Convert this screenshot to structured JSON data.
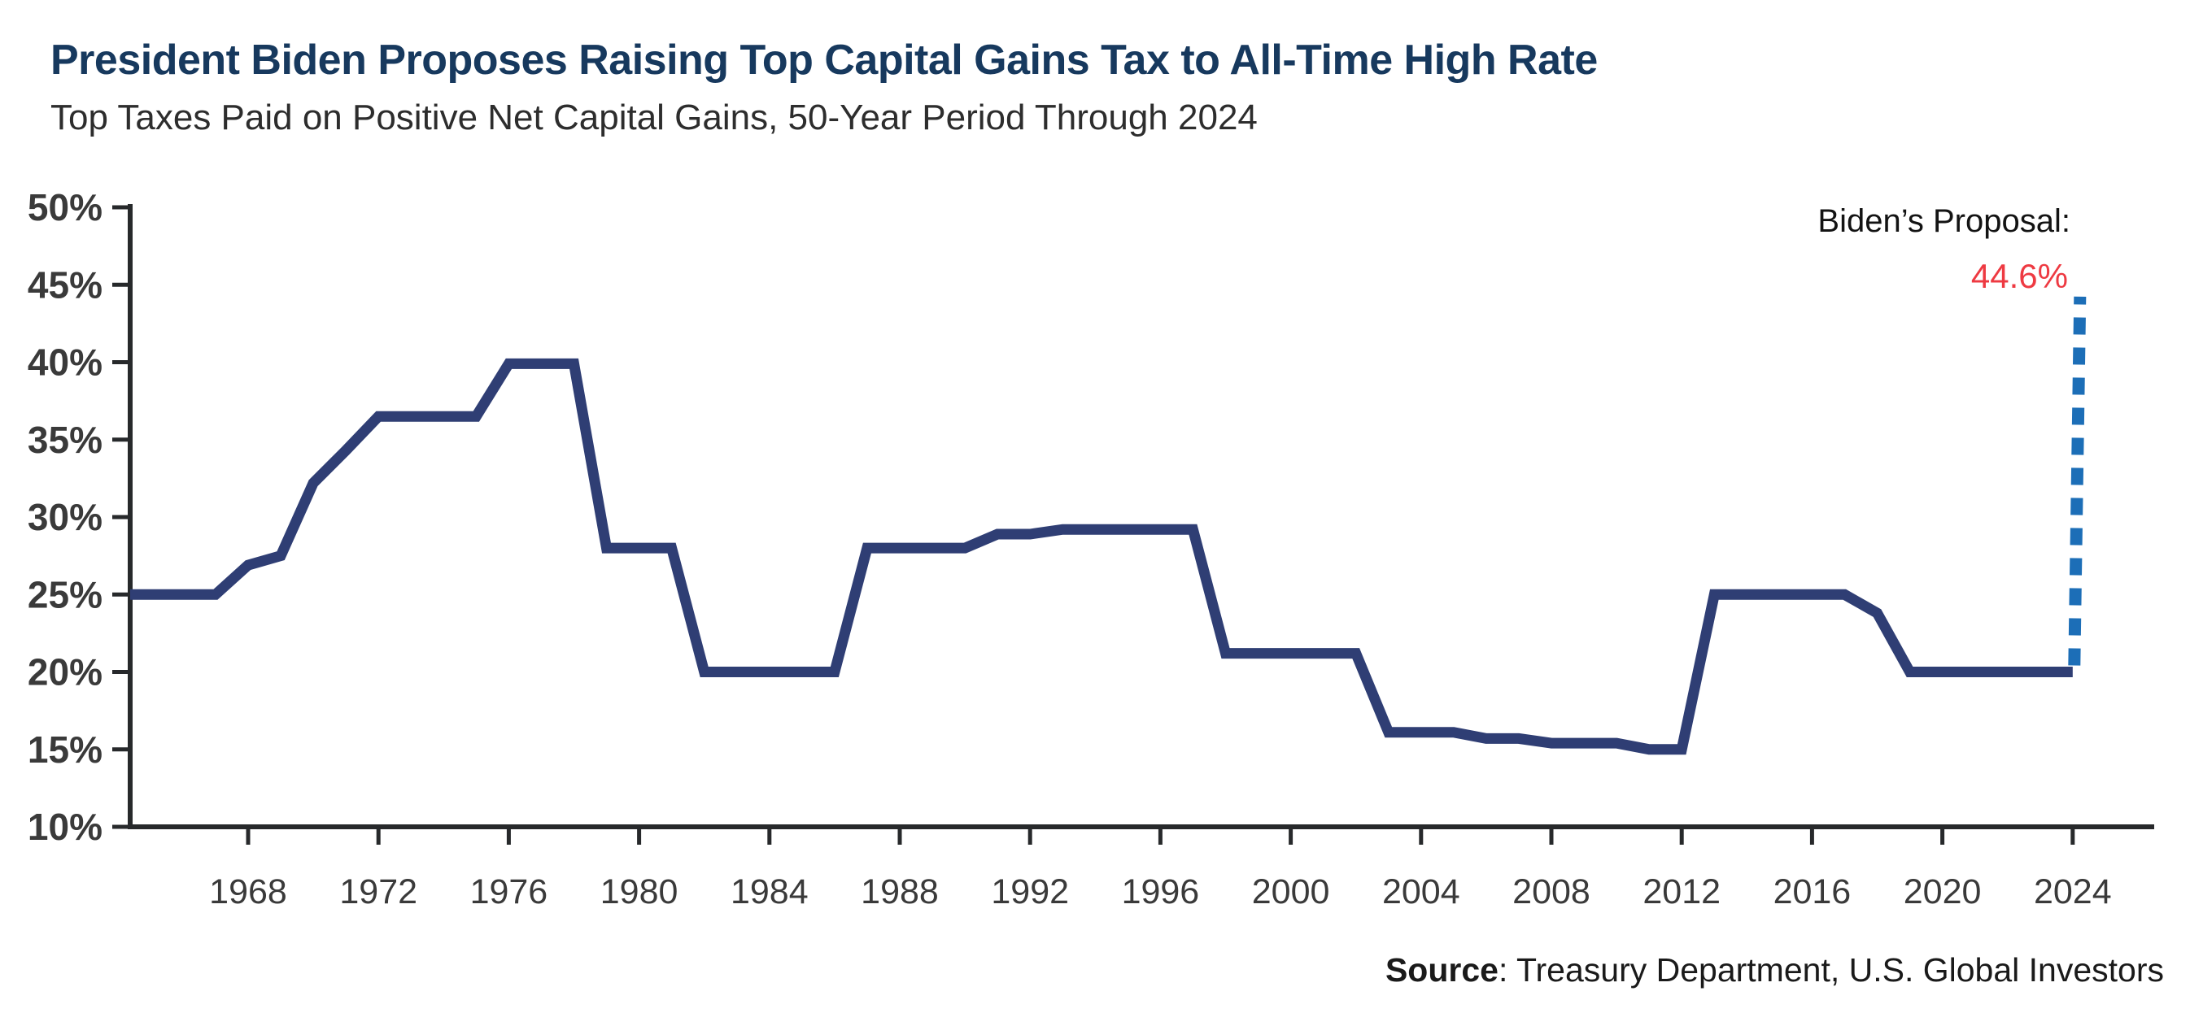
{
  "header": {
    "title": "President Biden Proposes Raising Top Capital Gains Tax to All-Time High Rate",
    "subtitle": "Top Taxes Paid on Positive Net Capital Gains, 50-Year Period Through 2024"
  },
  "annotation": {
    "label": "Biden’s Proposal:",
    "value": "44.6%"
  },
  "source": {
    "prefix": "Source",
    "text": ": Treasury Department, U.S. Global Investors"
  },
  "colors": {
    "title": "#17395e",
    "subtitle": "#2d2d2d",
    "line": "#2f3e74",
    "proposal_dash": "#1c6eb7",
    "proposal_value": "#ee3a42",
    "axis": "#27292b",
    "tick_label": "#3a3a3a",
    "annotation_label": "#131313",
    "source_text": "#1a1a1a"
  },
  "chart_data": {
    "type": "line",
    "title": "President Biden Proposes Raising Top Capital Gains Tax to All-Time High Rate",
    "subtitle": "Top Taxes Paid on Positive Net Capital Gains, 50-Year Period Through 2024",
    "xlabel": "",
    "ylabel": "",
    "ylim": [
      10,
      50
    ],
    "grid": false,
    "legend": "none",
    "ytick_suffix": "%",
    "yticks": [
      10,
      15,
      20,
      25,
      30,
      35,
      40,
      45,
      50
    ],
    "xticks": [
      1968,
      1972,
      1976,
      1980,
      1984,
      1988,
      1992,
      1996,
      2000,
      2004,
      2008,
      2012,
      2016,
      2020,
      2024
    ],
    "x": [
      1965,
      1966,
      1967,
      1968,
      1969,
      1970,
      1971,
      1972,
      1973,
      1974,
      1975,
      1976,
      1977,
      1978,
      1979,
      1980,
      1981,
      1982,
      1983,
      1984,
      1985,
      1986,
      1987,
      1988,
      1989,
      1990,
      1991,
      1992,
      1993,
      1994,
      1995,
      1996,
      1997,
      1998,
      1999,
      2000,
      2001,
      2002,
      2003,
      2004,
      2005,
      2006,
      2007,
      2008,
      2009,
      2010,
      2011,
      2012,
      2013,
      2014,
      2015,
      2016,
      2017,
      2018,
      2019,
      2020,
      2021,
      2022,
      2023,
      2024
    ],
    "series": [
      {
        "name": "Top tax paid on positive net capital gains (%)",
        "values": [
          25,
          25,
          25,
          26.9,
          27.5,
          32.2,
          34.3,
          36.5,
          36.5,
          36.5,
          36.5,
          39.9,
          39.9,
          39.9,
          28,
          28,
          28,
          20,
          20,
          20,
          20,
          20,
          28,
          28,
          28,
          28,
          28.9,
          28.9,
          29.2,
          29.2,
          29.2,
          29.2,
          29.2,
          21.2,
          21.2,
          21.2,
          21.2,
          21.2,
          16.1,
          16.1,
          16.1,
          15.7,
          15.7,
          15.4,
          15.4,
          15.4,
          15,
          15,
          25,
          25,
          25,
          25,
          25,
          23.8,
          20,
          20,
          20,
          20,
          20,
          20
        ]
      }
    ],
    "proposal": {
      "label": "Biden’s Proposal:",
      "value": 44.6,
      "year": 2024,
      "style": "dashed"
    }
  }
}
